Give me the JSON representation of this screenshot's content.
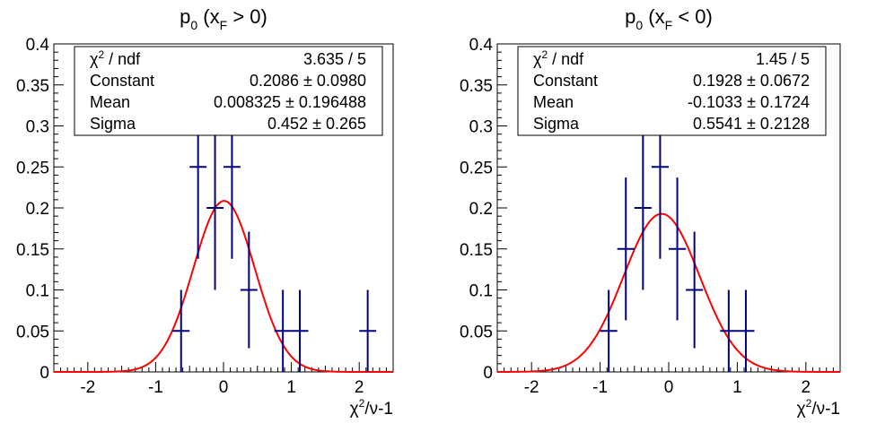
{
  "chart_data": [
    {
      "type": "scatter",
      "title": "p0 (xF > 0)",
      "title_main": "p",
      "title_sub": "0",
      "title_rest1": " (x",
      "title_sub2": "F",
      "title_rest2": " > 0)",
      "xlabel": "χ²/ν-1",
      "xlabel_a": "χ",
      "xlabel_sup": "2",
      "xlabel_b": "/ν-1",
      "xlim": [
        -2.5,
        2.5
      ],
      "ylim": [
        0,
        0.4
      ],
      "x_ticks": [
        "-2",
        "-1",
        "0",
        "1",
        "2"
      ],
      "y_ticks": [
        "0",
        "0.05",
        "0.1",
        "0.15",
        "0.2",
        "0.25",
        "0.3",
        "0.35",
        "0.4"
      ],
      "points": [
        {
          "x": -0.625,
          "y": 0.05,
          "err": 0.05
        },
        {
          "x": -0.375,
          "y": 0.25,
          "err": 0.112
        },
        {
          "x": -0.125,
          "y": 0.2,
          "err": 0.1
        },
        {
          "x": 0.125,
          "y": 0.25,
          "err": 0.112
        },
        {
          "x": 0.375,
          "y": 0.1,
          "err": 0.071
        },
        {
          "x": 0.875,
          "y": 0.05,
          "err": 0.05
        },
        {
          "x": 1.125,
          "y": 0.05,
          "err": 0.05
        },
        {
          "x": 2.125,
          "y": 0.05,
          "err": 0.05
        }
      ],
      "bin_width": 0.25,
      "fit": {
        "function": "gaus",
        "constant": 0.2086,
        "mean": 0.008325,
        "sigma": 0.452
      },
      "stats": [
        {
          "label": "χ² / ndf",
          "label_a": "χ",
          "label_sup": "2",
          "label_b": " / ndf",
          "value": "3.635 / 5"
        },
        {
          "label": "Constant",
          "value": "0.2086 ± 0.0980"
        },
        {
          "label": "Mean",
          "value": "0.008325 ± 0.196488"
        },
        {
          "label": "Sigma",
          "value": "0.452 ± 0.265"
        }
      ],
      "colors": {
        "points": "#000080",
        "fit": "#ff0000"
      },
      "grid": false,
      "legend": "top"
    },
    {
      "type": "scatter",
      "title": "p0 (xF < 0)",
      "title_main": "p",
      "title_sub": "0",
      "title_rest1": " (x",
      "title_sub2": "F",
      "title_rest2": " < 0)",
      "xlabel": "χ²/ν-1",
      "xlabel_a": "χ",
      "xlabel_sup": "2",
      "xlabel_b": "/ν-1",
      "xlim": [
        -2.5,
        2.5
      ],
      "ylim": [
        0,
        0.4
      ],
      "x_ticks": [
        "-2",
        "-1",
        "0",
        "1",
        "2"
      ],
      "y_ticks": [
        "0",
        "0.05",
        "0.1",
        "0.15",
        "0.2",
        "0.25",
        "0.3",
        "0.35",
        "0.4"
      ],
      "points": [
        {
          "x": -0.875,
          "y": 0.05,
          "err": 0.05
        },
        {
          "x": -0.625,
          "y": 0.15,
          "err": 0.087
        },
        {
          "x": -0.375,
          "y": 0.2,
          "err": 0.1
        },
        {
          "x": -0.125,
          "y": 0.25,
          "err": 0.112
        },
        {
          "x": 0.125,
          "y": 0.15,
          "err": 0.087
        },
        {
          "x": 0.375,
          "y": 0.1,
          "err": 0.071
        },
        {
          "x": 0.875,
          "y": 0.05,
          "err": 0.05
        },
        {
          "x": 1.125,
          "y": 0.05,
          "err": 0.05
        }
      ],
      "bin_width": 0.25,
      "fit": {
        "function": "gaus",
        "constant": 0.1928,
        "mean": -0.1033,
        "sigma": 0.5541
      },
      "stats": [
        {
          "label": "χ² / ndf",
          "label_a": "χ",
          "label_sup": "2",
          "label_b": " / ndf",
          "value": "1.45 / 5"
        },
        {
          "label": "Constant",
          "value": "0.1928 ± 0.0672"
        },
        {
          "label": "Mean",
          "value": "-0.1033 ± 0.1724"
        },
        {
          "label": "Sigma",
          "value": "0.5541 ± 0.2128"
        }
      ],
      "colors": {
        "points": "#000080",
        "fit": "#ff0000"
      },
      "grid": false,
      "legend": "top"
    }
  ]
}
